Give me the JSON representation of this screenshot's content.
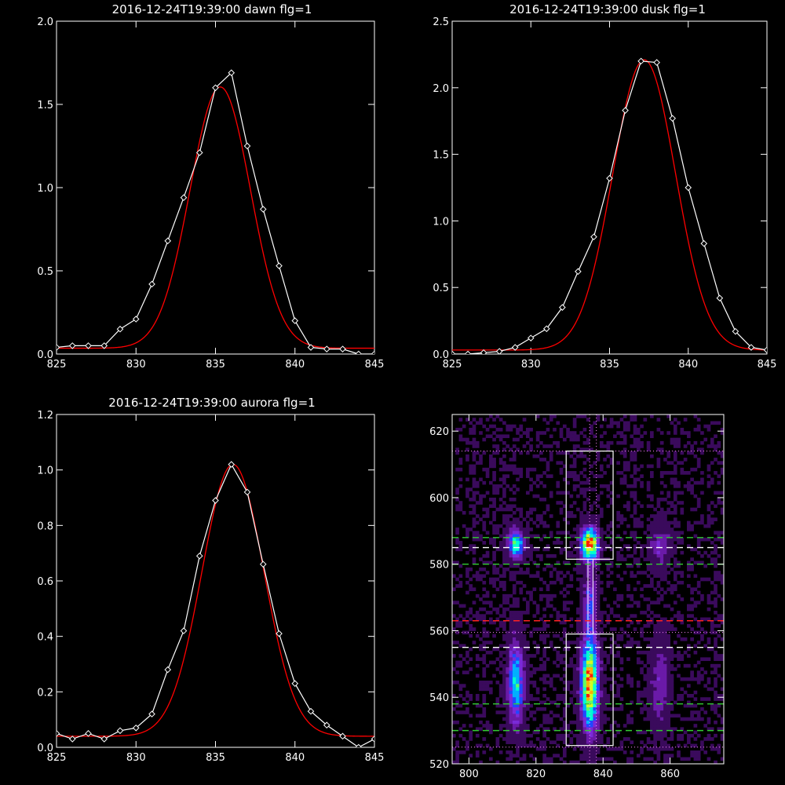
{
  "chart_data": [
    {
      "type": "line",
      "title": "2016-12-24T19:39:00 dawn flg=1",
      "xlim": [
        825,
        845
      ],
      "ylim": [
        0,
        2.0
      ],
      "xticks": [
        825,
        830,
        835,
        840,
        845
      ],
      "yticks": [
        0.0,
        0.5,
        1.0,
        1.5,
        2.0
      ],
      "xtick_labels": [
        "825",
        "830",
        "835",
        "840",
        "845"
      ],
      "ytick_labels": [
        "0.0",
        "0.5",
        "1.0",
        "1.5",
        "2.0"
      ],
      "series": [
        {
          "kind": "data",
          "color": "#ffffff",
          "marker": "diamond",
          "x": [
            825,
            826,
            827,
            828,
            829,
            830,
            831,
            832,
            833,
            834,
            835,
            836,
            837,
            838,
            839,
            840,
            841,
            842,
            843,
            844,
            845
          ],
          "y": [
            0.04,
            0.05,
            0.05,
            0.05,
            0.15,
            0.21,
            0.42,
            0.68,
            0.94,
            1.21,
            1.6,
            1.69,
            1.25,
            0.87,
            0.53,
            0.2,
            0.04,
            0.03,
            0.03,
            0.0,
            0.0
          ]
        },
        {
          "kind": "fit",
          "color": "#ff0000",
          "gaussian": {
            "amp": 1.57,
            "center": 835.3,
            "sigma": 1.9,
            "offset": 0.035
          }
        }
      ]
    },
    {
      "type": "line",
      "title": "2016-12-24T19:39:00 dusk flg=1",
      "xlim": [
        825,
        845
      ],
      "ylim": [
        0,
        2.5
      ],
      "xticks": [
        825,
        830,
        835,
        840,
        845
      ],
      "yticks": [
        0.0,
        0.5,
        1.0,
        1.5,
        2.0,
        2.5
      ],
      "xtick_labels": [
        "825",
        "830",
        "835",
        "840",
        "845"
      ],
      "ytick_labels": [
        "0.0",
        "0.5",
        "1.0",
        "1.5",
        "2.0",
        "2.5"
      ],
      "series": [
        {
          "kind": "data",
          "color": "#ffffff",
          "marker": "diamond",
          "x": [
            825,
            826,
            827,
            828,
            829,
            830,
            831,
            832,
            833,
            834,
            835,
            836,
            837,
            838,
            839,
            840,
            841,
            842,
            843,
            844,
            845
          ],
          "y": [
            0.0,
            0.0,
            0.01,
            0.02,
            0.05,
            0.12,
            0.19,
            0.35,
            0.62,
            0.88,
            1.32,
            1.83,
            2.2,
            2.19,
            1.77,
            1.25,
            0.83,
            0.42,
            0.17,
            0.05,
            0.03
          ]
        },
        {
          "kind": "fit",
          "color": "#ff0000",
          "gaussian": {
            "amp": 2.18,
            "center": 837.2,
            "sigma": 2.0,
            "offset": 0.03
          }
        }
      ]
    },
    {
      "type": "line",
      "title": "2016-12-24T19:39:00 aurora flg=1",
      "xlim": [
        825,
        845
      ],
      "ylim": [
        0,
        1.2
      ],
      "xticks": [
        825,
        830,
        835,
        840,
        845
      ],
      "yticks": [
        0.0,
        0.2,
        0.4,
        0.6,
        0.8,
        1.0,
        1.2
      ],
      "xtick_labels": [
        "825",
        "830",
        "835",
        "840",
        "845"
      ],
      "ytick_labels": [
        "0.0",
        "0.2",
        "0.4",
        "0.6",
        "0.8",
        "1.0",
        "1.2"
      ],
      "series": [
        {
          "kind": "data",
          "color": "#ffffff",
          "marker": "diamond",
          "x": [
            825,
            826,
            827,
            828,
            829,
            830,
            831,
            832,
            833,
            834,
            835,
            836,
            837,
            838,
            839,
            840,
            841,
            842,
            843,
            844,
            845
          ],
          "y": [
            0.05,
            0.03,
            0.05,
            0.03,
            0.06,
            0.07,
            0.12,
            0.28,
            0.42,
            0.69,
            0.89,
            1.02,
            0.92,
            0.66,
            0.41,
            0.23,
            0.13,
            0.08,
            0.04,
            0.0,
            0.03
          ]
        },
        {
          "kind": "fit",
          "color": "#ff0000",
          "gaussian": {
            "amp": 0.98,
            "center": 836.1,
            "sigma": 1.95,
            "offset": 0.04
          }
        }
      ]
    },
    {
      "type": "heatmap",
      "title": "",
      "xlim": [
        795,
        876
      ],
      "ylim": [
        520,
        625
      ],
      "xticks": [
        800,
        820,
        840,
        860
      ],
      "yticks": [
        520,
        540,
        560,
        580,
        600,
        620
      ],
      "xtick_labels": [
        "800",
        "820",
        "840",
        "860"
      ],
      "ytick_labels": [
        "520",
        "540",
        "560",
        "580",
        "600",
        "620"
      ],
      "colormap": [
        "#000000",
        "#3a0a5c",
        "#6a1aa8",
        "#7a2ad8",
        "#2048ff",
        "#00b0ff",
        "#00ffd0",
        "#60ff60",
        "#d0ff20",
        "#ffb000",
        "#ff2000"
      ],
      "blobs": [
        {
          "x": 836,
          "y": 586,
          "sx": 1.7,
          "sy": 3.2,
          "peak": 1.0
        },
        {
          "x": 836,
          "y": 544,
          "sx": 1.7,
          "sy": 9.0,
          "peak": 0.95
        },
        {
          "x": 814,
          "y": 586,
          "sx": 1.6,
          "sy": 2.8,
          "peak": 0.62
        },
        {
          "x": 814,
          "y": 544,
          "sx": 1.6,
          "sy": 8.0,
          "peak": 0.55
        },
        {
          "x": 857,
          "y": 586,
          "sx": 1.9,
          "sy": 4.5,
          "peak": 0.22
        },
        {
          "x": 857,
          "y": 544,
          "sx": 1.9,
          "sy": 9.0,
          "peak": 0.2
        },
        {
          "x": 836,
          "y": 568,
          "sx": 1.2,
          "sy": 6.0,
          "peak": 0.35
        }
      ],
      "boxes": [
        {
          "x0": 829,
          "x1": 843,
          "y0": 581.5,
          "y1": 614,
          "color": "#ffffff"
        },
        {
          "x0": 829,
          "x1": 843,
          "y0": 525.5,
          "y1": 559,
          "color": "#ffffff"
        }
      ],
      "hlines": [
        {
          "y": 614,
          "color": "#ff88ff",
          "style": "dotted"
        },
        {
          "y": 588,
          "color": "#33cc33",
          "style": "dashed"
        },
        {
          "y": 585,
          "color": "#ffffff",
          "style": "dashed"
        },
        {
          "y": 580,
          "color": "#33cc33",
          "style": "dashed"
        },
        {
          "y": 563,
          "color": "#ff2222",
          "style": "dashed"
        },
        {
          "y": 559.5,
          "color": "#ff88ff",
          "style": "dotted"
        },
        {
          "y": 555,
          "color": "#ffffff",
          "style": "dashed"
        },
        {
          "y": 538,
          "color": "#33cc33",
          "style": "dashed"
        },
        {
          "y": 530,
          "color": "#33cc33",
          "style": "dashed"
        },
        {
          "y": 525,
          "color": "#ff88ff",
          "style": "dotted"
        }
      ],
      "vlines": [
        {
          "x": 836,
          "color": "#ff88ff",
          "style": "dotted"
        },
        {
          "x": 838,
          "color": "#ff88ff",
          "style": "dotted"
        }
      ]
    }
  ]
}
